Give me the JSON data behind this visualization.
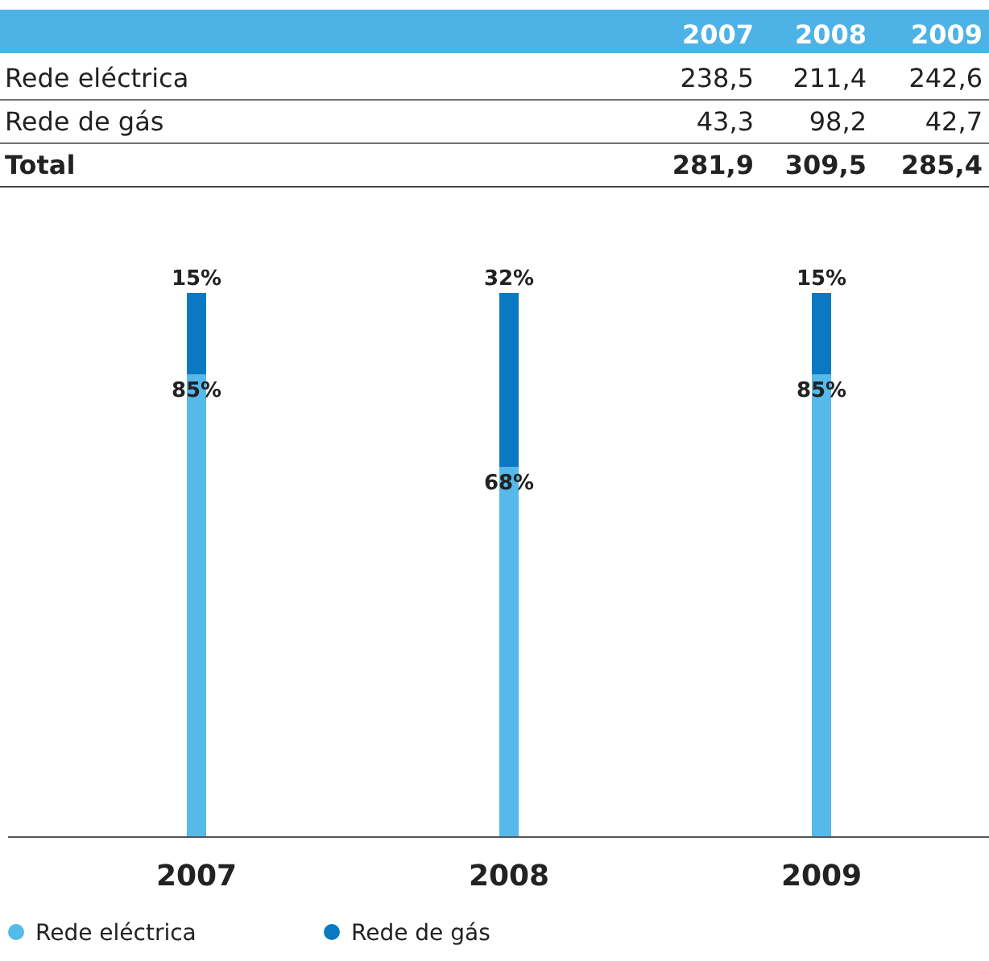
{
  "chart_data": [
    {
      "type": "other",
      "categories": [
        "2007",
        "2008",
        "2009"
      ],
      "series": [
        {
          "name": "Rede eléctrica",
          "values": [
            238.5,
            211.4,
            242.6
          ],
          "value_labels": [
            "238,5",
            "211,4",
            "242,6"
          ]
        },
        {
          "name": "Rede de gás",
          "values": [
            43.3,
            98.2,
            42.7
          ],
          "value_labels": [
            "43,3",
            "98,2",
            "42,7"
          ]
        },
        {
          "name": "Total",
          "values": [
            281.9,
            309.5,
            285.4
          ],
          "value_labels": [
            "281,9",
            "309,5",
            "285,4"
          ]
        }
      ]
    },
    {
      "type": "bar",
      "stacked": true,
      "categories": [
        "2007",
        "2008",
        "2009"
      ],
      "ylim": [
        0,
        100
      ],
      "tick_labels": "x",
      "legend": "bottom",
      "series": [
        {
          "name": "Rede eléctrica",
          "color": "#55b9ea",
          "values": [
            85,
            68,
            85
          ],
          "value_labels": [
            "85%",
            "68%",
            "85%"
          ]
        },
        {
          "name": "Rede de gás",
          "color": "#0a78c2",
          "values": [
            15,
            32,
            15
          ],
          "value_labels": [
            "15%",
            "32%",
            "15%"
          ]
        }
      ]
    }
  ]
}
